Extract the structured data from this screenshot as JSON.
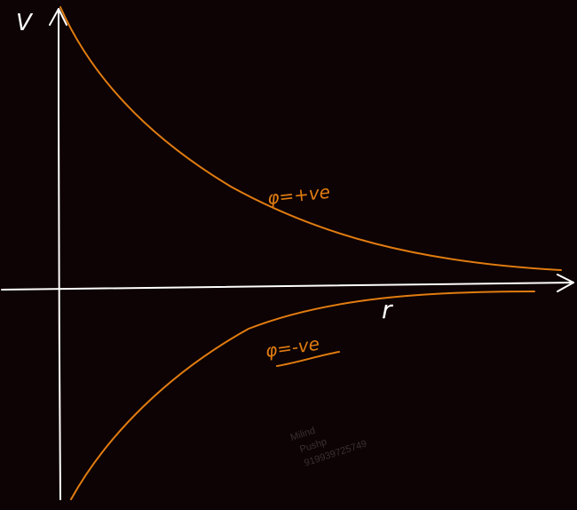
{
  "axes": {
    "y_label": "V",
    "x_label": "r"
  },
  "curves": {
    "positive_label": "φ=+ve",
    "negative_label": "φ=-ve"
  },
  "watermark": {
    "line1": "Milind",
    "line2": "Pushp",
    "line3": "919939725749"
  },
  "colors": {
    "background": "#0d0204",
    "axis": "#ffffff",
    "curve": "#e07c10",
    "watermark": "#3a3034"
  }
}
